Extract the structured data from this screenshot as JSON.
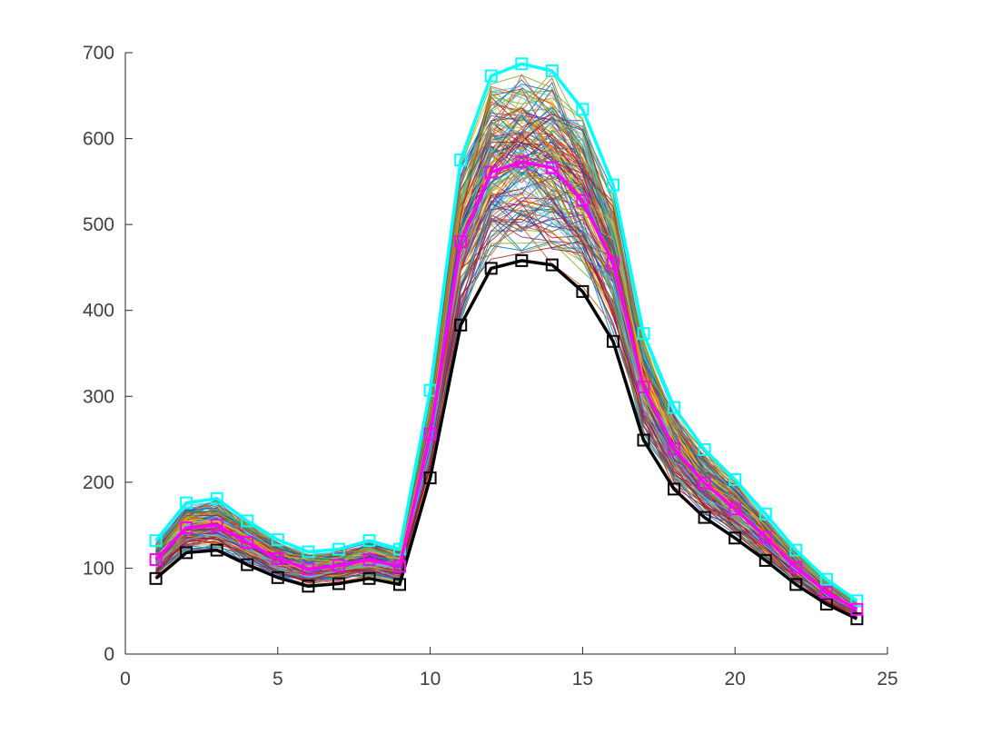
{
  "chart_data": {
    "type": "line",
    "title": "",
    "xlabel": "",
    "ylabel": "",
    "xlim": [
      0,
      25
    ],
    "ylim": [
      0,
      700
    ],
    "xticks": [
      0,
      5,
      10,
      15,
      20,
      25
    ],
    "yticks": [
      0,
      100,
      200,
      300,
      400,
      500,
      600,
      700
    ],
    "grid": false,
    "legend": "none",
    "x": [
      1,
      2,
      3,
      4,
      5,
      6,
      7,
      8,
      9,
      10,
      11,
      12,
      13,
      14,
      15,
      16,
      17,
      18,
      19,
      20,
      21,
      22,
      23,
      24
    ],
    "series": [
      {
        "color": "#00ffff",
        "marker": "square",
        "values": [
          132,
          176,
          181,
          155,
          133,
          119,
          122,
          132,
          122,
          307,
          575,
          673,
          687,
          679,
          634,
          546,
          373,
          287,
          238,
          203,
          163,
          121,
          87,
          62
        ]
      },
      {
        "color": "#ff00ff",
        "marker": "square",
        "values": [
          110,
          147,
          150,
          130,
          111,
          99,
          103,
          110,
          102,
          256,
          480,
          561,
          573,
          566,
          528,
          455,
          311,
          239,
          199,
          169,
          136,
          101,
          72,
          52
        ]
      },
      {
        "color": "#000000",
        "marker": "square",
        "values": [
          88,
          118,
          121,
          104,
          89,
          79,
          82,
          88,
          81,
          205,
          383,
          449,
          458,
          453,
          422,
          364,
          249,
          192,
          159,
          135,
          109,
          81,
          58,
          41
        ]
      }
    ],
    "ensemble_band": {
      "description_count": 160,
      "colors": [
        "#0072bd",
        "#d95319",
        "#edb120",
        "#7e2f8e",
        "#77ac30",
        "#4dbeee",
        "#a2142f"
      ]
    }
  }
}
